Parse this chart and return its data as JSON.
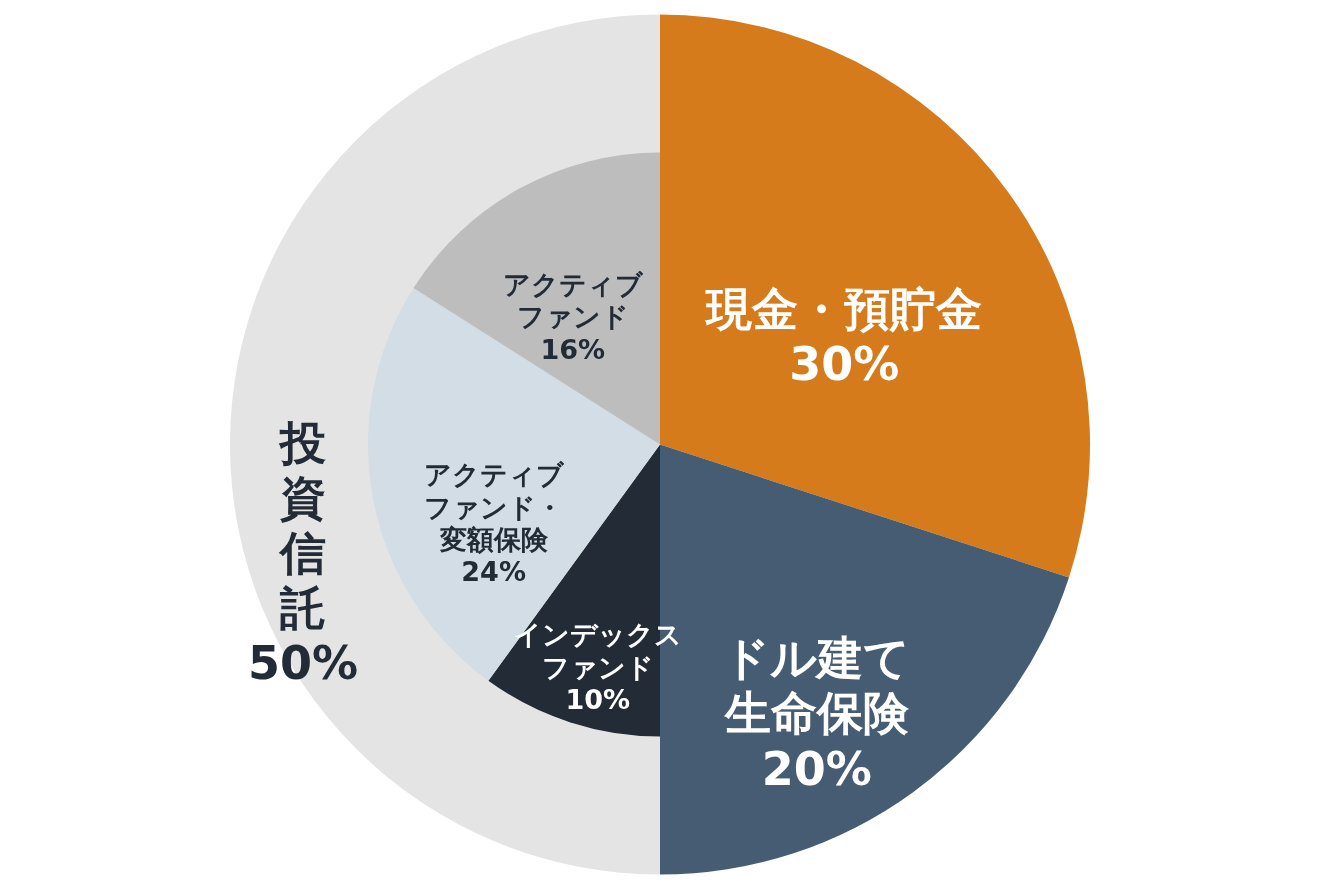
{
  "chart_data": [
    {
      "type": "pie",
      "categories": [
        "現金・預貯金",
        "ドル建て生命保険",
        "投資信託"
      ],
      "values": [
        30,
        20,
        50
      ],
      "value_labels": [
        "30%",
        "20%",
        "50%"
      ],
      "colors": [
        "#d57b1c",
        "#455c73",
        "#e4e4e4"
      ]
    },
    {
      "type": "pie",
      "categories": [
        "インデックスファンド",
        "アクティブファンド・変額保険",
        "アクティブファンド"
      ],
      "values": [
        10,
        24,
        16
      ],
      "value_labels": [
        "10%",
        "24%",
        "16%"
      ],
      "colors": [
        "#222b36",
        "#d3dde5",
        "#bdbdbd"
      ]
    }
  ]
}
